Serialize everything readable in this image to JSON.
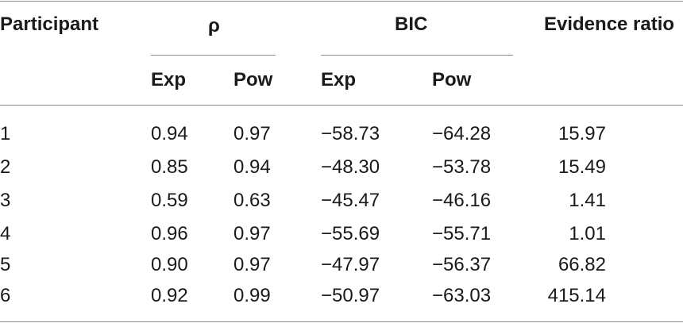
{
  "table": {
    "headers": {
      "participant": "Participant",
      "rho": "ρ",
      "bic": "BIC",
      "evidence_ratio": "Evidence ratio",
      "rho_exp": "Exp",
      "rho_pow": "Pow",
      "bic_exp": "Exp",
      "bic_pow": "Pow"
    },
    "rows": [
      {
        "participant": "1",
        "rho_exp": "0.94",
        "rho_pow": "0.97",
        "bic_exp": "−58.73",
        "bic_pow": "−64.28",
        "evidence_ratio": "15.97"
      },
      {
        "participant": "2",
        "rho_exp": "0.85",
        "rho_pow": "0.94",
        "bic_exp": "−48.30",
        "bic_pow": "−53.78",
        "evidence_ratio": "15.49"
      },
      {
        "participant": "3",
        "rho_exp": "0.59",
        "rho_pow": "0.63",
        "bic_exp": "−45.47",
        "bic_pow": "−46.16",
        "evidence_ratio": "1.41"
      },
      {
        "participant": "4",
        "rho_exp": "0.96",
        "rho_pow": "0.97",
        "bic_exp": "−55.69",
        "bic_pow": "−55.71",
        "evidence_ratio": "1.01"
      },
      {
        "participant": "5",
        "rho_exp": "0.90",
        "rho_pow": "0.97",
        "bic_exp": "−47.97",
        "bic_pow": "−56.37",
        "evidence_ratio": "66.82"
      },
      {
        "participant": "6",
        "rho_exp": "0.92",
        "rho_pow": "0.99",
        "bic_exp": "−50.97",
        "bic_pow": "−63.03",
        "evidence_ratio": "415.14"
      }
    ]
  }
}
